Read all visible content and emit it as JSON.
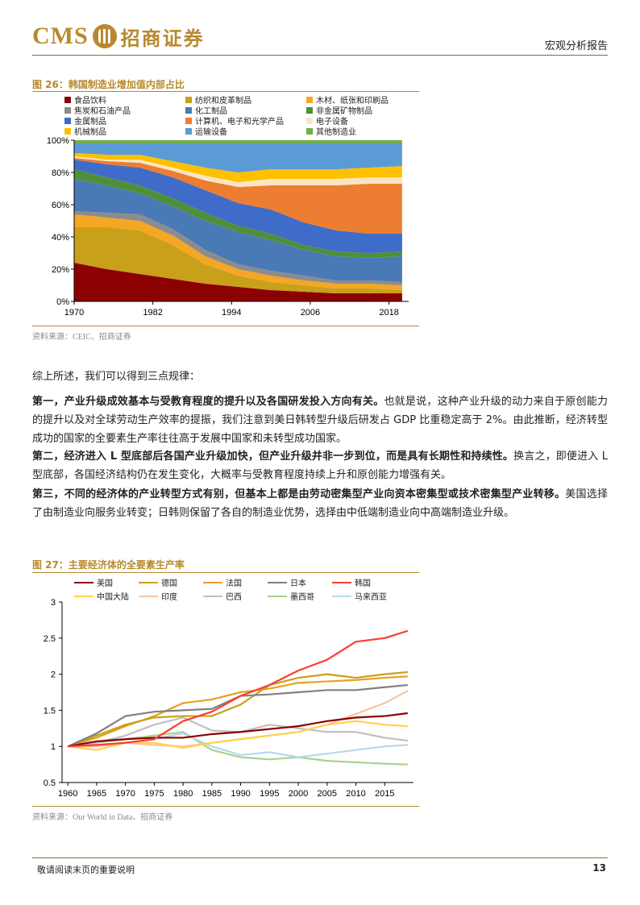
{
  "header": {
    "logo_latin": "CMS",
    "logo_cn": "招商证券",
    "report_type": "宏观分析报告"
  },
  "figure26": {
    "title": "图 26：韩国制造业增加值内部占比",
    "source": "资料来源：CEIC、招商证券",
    "legend": [
      {
        "label": "食品饮料",
        "color": "#8b0000"
      },
      {
        "label": "纺织和皮革制品",
        "color": "#c9a01a"
      },
      {
        "label": "木材、纸张和印刷品",
        "color": "#f5a623"
      },
      {
        "label": "焦炭和石油产品",
        "color": "#8c8c8c"
      },
      {
        "label": "化工制品",
        "color": "#4a7ab5"
      },
      {
        "label": "非金属矿物制品",
        "color": "#4f8f3a"
      },
      {
        "label": "金属制品",
        "color": "#3f6cc9"
      },
      {
        "label": "计算机、电子和光学产品",
        "color": "#ed7d31"
      },
      {
        "label": "电子设备",
        "color": "#fbe5c0"
      },
      {
        "label": "机械制品",
        "color": "#ffc000"
      },
      {
        "label": "运输设备",
        "color": "#5b9bd5"
      },
      {
        "label": "其他制造业",
        "color": "#70ad47"
      }
    ]
  },
  "chart_data": [
    {
      "type": "area",
      "title": "图 26：韩国制造业增加值内部占比",
      "stacked_percent": true,
      "x_ticks": [
        "1970",
        "1982",
        "1994",
        "2006",
        "2018"
      ],
      "y_ticks": [
        "0%",
        "20%",
        "40%",
        "60%",
        "80%",
        "100%"
      ],
      "ylim": [
        0,
        100
      ],
      "x": [
        1970,
        1975,
        1980,
        1985,
        1990,
        1995,
        2000,
        2005,
        2010,
        2015,
        2020
      ],
      "series": [
        {
          "name": "食品饮料",
          "values": [
            24,
            20,
            17,
            14,
            11,
            9,
            7,
            6,
            5,
            5,
            5
          ]
        },
        {
          "name": "纺织和皮革制品",
          "values": [
            22,
            26,
            27,
            21,
            12,
            7,
            5,
            4,
            3,
            3,
            2
          ]
        },
        {
          "name": "木材、纸张和印刷品",
          "values": [
            8,
            6,
            6,
            6,
            5,
            4,
            4,
            3,
            3,
            3,
            3
          ]
        },
        {
          "name": "焦炭和石油产品",
          "values": [
            2,
            3,
            4,
            4,
            4,
            3,
            3,
            3,
            2,
            2,
            2
          ]
        },
        {
          "name": "化工制品",
          "values": [
            20,
            17,
            13,
            14,
            18,
            20,
            19,
            16,
            15,
            14,
            16
          ]
        },
        {
          "name": "非金属矿物制品",
          "values": [
            6,
            5,
            5,
            5,
            5,
            4,
            4,
            3,
            3,
            3,
            3
          ]
        },
        {
          "name": "金属制品",
          "values": [
            6,
            8,
            11,
            13,
            14,
            14,
            15,
            14,
            13,
            12,
            11
          ]
        },
        {
          "name": "计算机、电子和光学产品",
          "values": [
            1,
            2,
            3,
            4,
            6,
            10,
            15,
            23,
            28,
            31,
            31
          ]
        },
        {
          "name": "电子设备",
          "values": [
            1,
            1,
            2,
            2,
            3,
            3,
            4,
            4,
            4,
            4,
            4
          ]
        },
        {
          "name": "机械制品",
          "values": [
            2,
            3,
            3,
            4,
            5,
            6,
            6,
            6,
            6,
            6,
            7
          ]
        },
        {
          "name": "运输设备",
          "values": [
            6,
            7,
            7,
            11,
            15,
            18,
            16,
            16,
            16,
            15,
            14
          ]
        },
        {
          "name": "其他制造业",
          "values": [
            2,
            2,
            2,
            2,
            2,
            2,
            2,
            2,
            2,
            2,
            2
          ]
        }
      ]
    },
    {
      "type": "line",
      "title": "图 27：主要经济体的全要素生产率",
      "x_ticks": [
        "1960",
        "1965",
        "1970",
        "1975",
        "1980",
        "1985",
        "1990",
        "1995",
        "2000",
        "2005",
        "2010",
        "2015"
      ],
      "y_ticks": [
        "0.5",
        "1",
        "1.5",
        "2",
        "2.5",
        "3"
      ],
      "ylim": [
        0.5,
        3
      ],
      "x": [
        1960,
        1965,
        1970,
        1975,
        1980,
        1985,
        1990,
        1995,
        2000,
        2005,
        2010,
        2015,
        2019
      ],
      "series": [
        {
          "name": "美国",
          "color": "#8b0000",
          "values": [
            1.0,
            1.07,
            1.1,
            1.12,
            1.12,
            1.17,
            1.2,
            1.24,
            1.28,
            1.35,
            1.4,
            1.42,
            1.46
          ]
        },
        {
          "name": "德国",
          "color": "#c9a01a",
          "values": [
            1.0,
            1.15,
            1.3,
            1.4,
            1.42,
            1.42,
            1.58,
            1.85,
            1.95,
            2.0,
            1.95,
            2.0,
            2.03
          ]
        },
        {
          "name": "法国",
          "color": "#e8a020",
          "values": [
            1.0,
            1.12,
            1.28,
            1.42,
            1.6,
            1.65,
            1.75,
            1.8,
            1.88,
            1.9,
            1.92,
            1.95,
            1.97
          ]
        },
        {
          "name": "日本",
          "color": "#808080",
          "values": [
            1.0,
            1.18,
            1.42,
            1.48,
            1.5,
            1.52,
            1.7,
            1.72,
            1.75,
            1.78,
            1.78,
            1.82,
            1.85
          ]
        },
        {
          "name": "韩国",
          "color": "#ff3b30",
          "values": [
            1.0,
            1.02,
            1.05,
            1.1,
            1.35,
            1.48,
            1.7,
            1.85,
            2.05,
            2.2,
            2.45,
            2.5,
            2.6
          ]
        },
        {
          "name": "中国大陆",
          "color": "#ffd24d",
          "values": [
            1.0,
            0.95,
            1.05,
            1.05,
            0.98,
            1.05,
            1.1,
            1.15,
            1.2,
            1.3,
            1.35,
            1.3,
            1.28
          ]
        },
        {
          "name": "印度",
          "color": "#f7c59f",
          "values": [
            1.0,
            1.0,
            1.05,
            1.02,
            1.0,
            1.05,
            1.1,
            1.15,
            1.2,
            1.3,
            1.45,
            1.6,
            1.77
          ]
        },
        {
          "name": "巴西",
          "color": "#bfbfbf",
          "values": [
            1.0,
            1.05,
            1.15,
            1.3,
            1.4,
            1.22,
            1.2,
            1.3,
            1.25,
            1.2,
            1.2,
            1.12,
            1.08
          ]
        },
        {
          "name": "墨西哥",
          "color": "#a9d18e",
          "values": [
            1.0,
            1.05,
            1.1,
            1.15,
            1.2,
            0.95,
            0.85,
            0.82,
            0.85,
            0.8,
            0.78,
            0.76,
            0.75
          ]
        },
        {
          "name": "马来西亚",
          "color": "#b4d9ee",
          "values": [
            1.0,
            1.02,
            1.05,
            1.1,
            1.18,
            1.0,
            0.88,
            0.92,
            0.85,
            0.9,
            0.95,
            1.0,
            1.02
          ]
        }
      ]
    }
  ],
  "body": {
    "intro": "综上所述，我们可以得到三点规律：",
    "p1_bold": "第一，产业升级成效基本与受教育程度的提升以及各国研发投入方向有关。",
    "p1_rest": "也就是说，这种产业升级的动力来自于原创能力的提升以及对全球劳动生产效率的提振，我们注意到美日韩转型升级后研发占 GDP 比重稳定高于 2%。由此推断，经济转型成功的国家的全要素生产率往往高于发展中国家和未转型成功国家。",
    "p2_bold": "第二，经济进入 L 型底部后各国产业升级加快，但产业升级并非一步到位，而是具有长期性和持续性。",
    "p2_rest": "换言之，即便进入 L 型底部，各国经济结构仍在发生变化，大概率与受教育程度持续上升和原创能力增强有关。",
    "p3_bold": "第三，不同的经济体的产业转型方式有别，但基本上都是由劳动密集型产业向资本密集型或技术密集型产业转移。",
    "p3_rest": "美国选择了由制造业向服务业转变；日韩则保留了各自的制造业优势，选择由中低端制造业向中高端制造业升级。"
  },
  "figure27": {
    "title": "图 27：主要经济体的全要素生产率",
    "source": "资料来源：Our World in Data、招商证券"
  },
  "footer": {
    "disclaimer": "敬请阅读末页的重要说明",
    "page": "13"
  }
}
